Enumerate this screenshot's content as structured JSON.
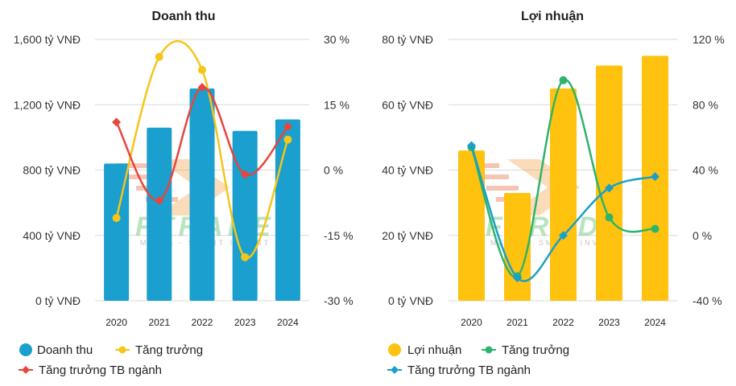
{
  "chart_data": [
    {
      "type": "bar",
      "title": "Doanh thu",
      "categories": [
        "2020",
        "2021",
        "2022",
        "2023",
        "2024"
      ],
      "ylim": [
        0,
        1600
      ],
      "y_ticks": [
        "0 tỷ VNĐ",
        "400 tỷ VNĐ",
        "800 tỷ VNĐ",
        "1,200 tỷ VNĐ",
        "1,600 tỷ VNĐ"
      ],
      "y2lim": [
        -30,
        30
      ],
      "y2_ticks": [
        "-30 %",
        "-15 %",
        "0 %",
        "15 %",
        "30 %"
      ],
      "bar_color": "#1a9fce",
      "series": [
        {
          "name": "Doanh thu",
          "type": "bar",
          "axis": "left",
          "color": "#1a9fce",
          "values": [
            840,
            1060,
            1300,
            1040,
            1110
          ]
        },
        {
          "name": "Tăng trưởng",
          "type": "line",
          "axis": "right",
          "color": "#f5c518",
          "marker": "circle",
          "values": [
            -11,
            26,
            23,
            -20,
            7
          ]
        },
        {
          "name": "Tăng trưởng TB ngành",
          "type": "line",
          "axis": "right",
          "color": "#e8453c",
          "marker": "diamond",
          "values": [
            11,
            -7,
            19,
            -1,
            10
          ]
        }
      ],
      "legend": "bottom"
    },
    {
      "type": "bar",
      "title": "Lợi nhuận",
      "categories": [
        "2020",
        "2021",
        "2022",
        "2023",
        "2024"
      ],
      "ylim": [
        0,
        80
      ],
      "y_ticks": [
        "0 tỷ VNĐ",
        "20 tỷ VNĐ",
        "40 tỷ VNĐ",
        "60 tỷ VNĐ",
        "80 tỷ VNĐ"
      ],
      "y2lim": [
        -40,
        120
      ],
      "y2_ticks": [
        "-40 %",
        "0 %",
        "40 %",
        "80 %",
        "120 %"
      ],
      "bar_color": "#ffc20e",
      "series": [
        {
          "name": "Lợi nhuận",
          "type": "bar",
          "axis": "left",
          "color": "#ffc20e",
          "values": [
            46,
            33,
            65,
            72,
            75
          ]
        },
        {
          "name": "Tăng trưởng",
          "type": "line",
          "axis": "right",
          "color": "#2eb36b",
          "marker": "circle",
          "values": [
            54,
            -25,
            95,
            11,
            4
          ]
        },
        {
          "name": "Tăng trưởng TB ngành",
          "type": "line",
          "axis": "right",
          "color": "#1aa0c8",
          "marker": "diamond",
          "values": [
            55,
            -26,
            0,
            29,
            36
          ]
        }
      ],
      "legend": "bottom"
    }
  ],
  "watermark": {
    "text": "FTRADE",
    "subtitle": "MEDIA - SMART INVEST",
    "opacity": "0.35"
  }
}
